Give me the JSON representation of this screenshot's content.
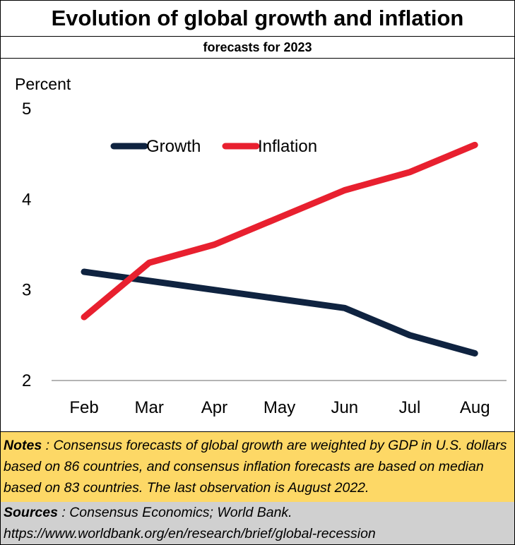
{
  "chart_data": {
    "type": "line",
    "title": "Evolution of global growth and inflation",
    "subtitle": "forecasts for 2023",
    "ylabel": "Percent",
    "xlabel": "",
    "categories": [
      "Feb",
      "Mar",
      "Apr",
      "May",
      "Jun",
      "Jul",
      "Aug"
    ],
    "ylim": [
      2,
      5
    ],
    "yticks": [
      "2",
      "3",
      "4",
      "5"
    ],
    "legend": "top",
    "grid": false,
    "series": [
      {
        "name": "Growth",
        "color": "#0f2340",
        "values": [
          3.2,
          3.1,
          3.0,
          2.9,
          2.8,
          2.5,
          2.3
        ]
      },
      {
        "name": "Inflation",
        "color": "#e8202f",
        "values": [
          2.7,
          3.3,
          3.5,
          3.8,
          4.1,
          4.3,
          4.6
        ]
      }
    ]
  },
  "notes": {
    "label": "Notes",
    "text": " : Consensus forecasts of global growth are weighted by GDP in U.S. dollars based on 86 countries, and consensus inflation forecasts are based on median based on 83 countries. The last observation is August 2022."
  },
  "sources": {
    "label": "Sources",
    "text": " : Consensus Economics; World Bank.",
    "url": "https://www.worldbank.org/en/research/brief/global-recession"
  }
}
